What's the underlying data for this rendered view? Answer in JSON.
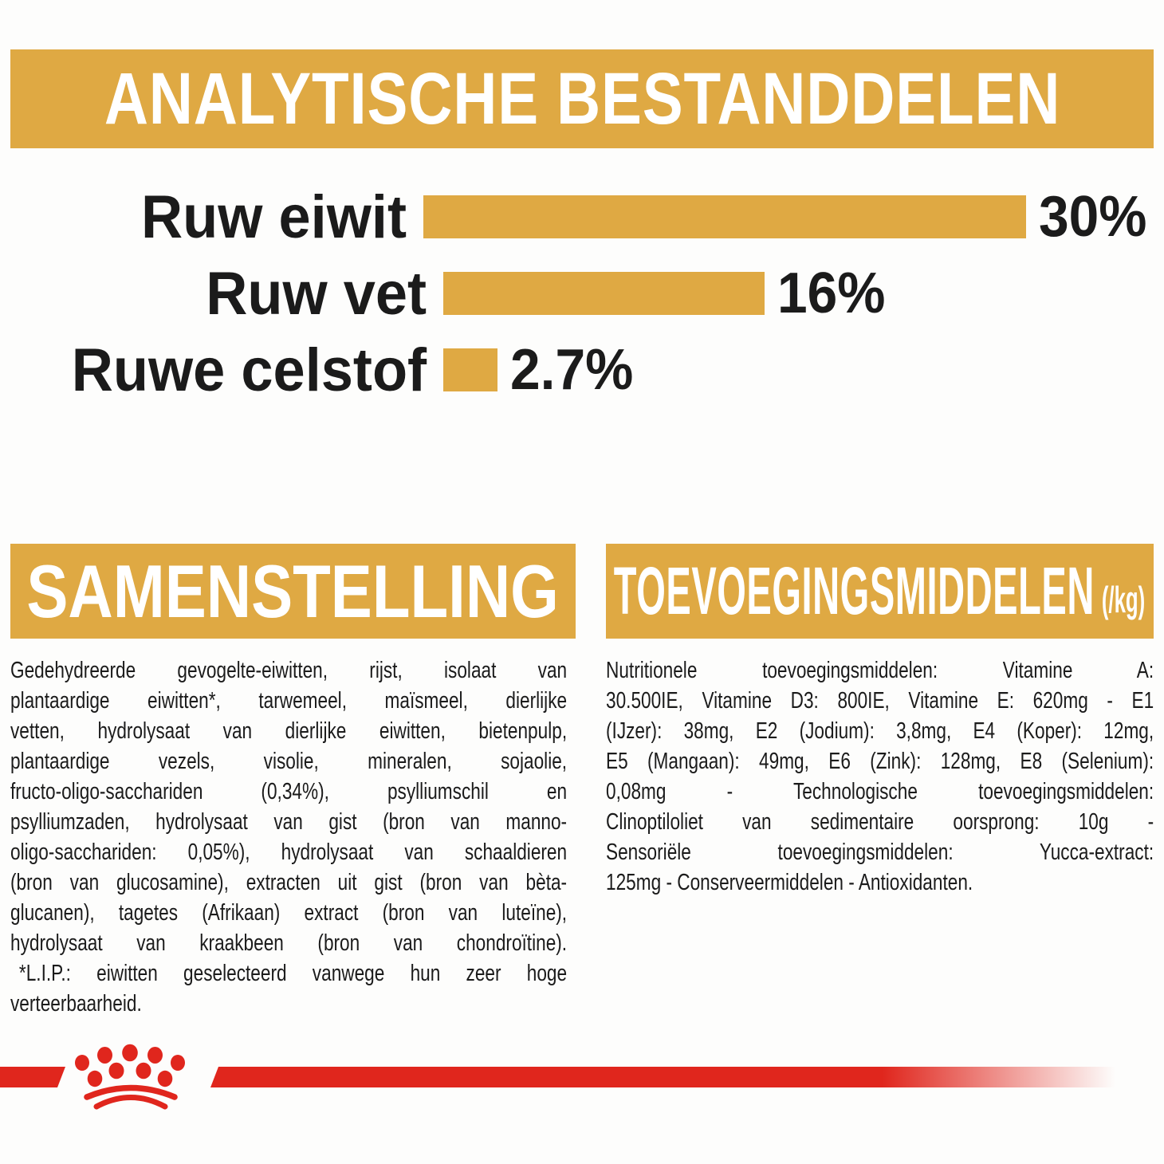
{
  "colors": {
    "accent_gold": "#DFA943",
    "brand_red": "#E0261D",
    "text_black": "#1B1B1B",
    "background": "#FDFDFC"
  },
  "analytical": {
    "title": "ANALYTISCHE BESTANDDELEN"
  },
  "chart_data": {
    "type": "bar",
    "orientation": "horizontal",
    "title": "ANALYTISCHE BESTANDDELEN",
    "categories": [
      "Ruw eiwit",
      "Ruw vet",
      "Ruwe celstof"
    ],
    "values": [
      30,
      16,
      2.7
    ],
    "value_labels": [
      "30%",
      "16%",
      "2.7%"
    ],
    "unit": "%",
    "xlim": [
      0,
      30
    ],
    "grid": false,
    "legend": false,
    "bar_color": "#DFA943"
  },
  "composition": {
    "title": "SAMENSTELLING",
    "lines": [
      "Gedehydreerde gevogelte-eiwitten, rijst, isolaat van",
      "plantaardige eiwitten*, tarwemeel, maïsmeel, dierlijke",
      "vetten, hydrolysaat van dierlijke eiwitten, bietenpulp,",
      "plantaardige vezels, visolie, mineralen, sojaolie,",
      "fructo-oligo-sacchariden (0,34%), psylliumschil en",
      "psylliumzaden, hydrolysaat van gist (bron van manno-",
      "oligo-sacchariden: 0,05%), hydrolysaat van schaaldieren",
      "(bron van glucosamine), extracten uit gist (bron van bèta-",
      "glucanen), tagetes (Afrikaan) extract (bron van luteïne),",
      "hydrolysaat van kraakbeen (bron van chondroïtine).",
      "*L.I.P.: eiwitten geselecteerd vanwege hun zeer hoge",
      "verteerbaarheid."
    ]
  },
  "additives": {
    "title": "TOEVOEGINGSMIDDELEN",
    "title_suffix": "(/kg)",
    "lines": [
      "Nutritionele toevoegingsmiddelen: Vitamine A:",
      "30.500IE, Vitamine D3: 800IE, Vitamine E: 620mg - E1",
      "(IJzer): 38mg, E2 (Jodium): 3,8mg, E4 (Koper): 12mg,",
      "E5 (Mangaan): 49mg, E6 (Zink): 128mg, E8 (Selenium):",
      "0,08mg - Technologische toevoegingsmiddelen:",
      "Clinoptiloliet van sedimentaire oorsprong: 10g -",
      "Sensoriële toevoegingsmiddelen: Yucca-extract:",
      "125mg - Conserveermiddelen - Antioxidanten."
    ]
  },
  "footer": {
    "logo": "royal-canin-crown-paw-logo"
  }
}
